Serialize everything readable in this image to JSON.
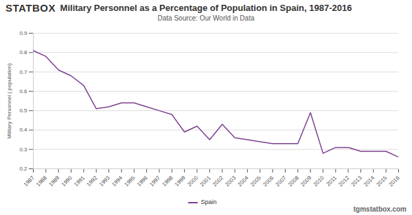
{
  "chart_data": {
    "type": "line",
    "logo": "STATBOX",
    "title": "Military Personnel as a Percentage of Population in Spain, 1987-2016",
    "subtitle": "Data Source: Our World in Data",
    "caption": "tgmstatbox.com",
    "y_label": "Military Personnel ( population)",
    "x": [
      1987,
      1988,
      1989,
      1990,
      1991,
      1992,
      1993,
      1994,
      1995,
      1996,
      1997,
      1998,
      1999,
      2000,
      2001,
      2002,
      2003,
      2004,
      2005,
      2006,
      2007,
      2008,
      2009,
      2010,
      2011,
      2012,
      2013,
      2014,
      2015,
      2016
    ],
    "series": [
      {
        "name": "Spain",
        "color": "#7b3f8f",
        "values": [
          0.81,
          0.78,
          0.71,
          0.68,
          0.63,
          0.51,
          0.52,
          0.54,
          0.54,
          0.52,
          0.5,
          0.48,
          0.39,
          0.42,
          0.35,
          0.43,
          0.36,
          0.35,
          0.34,
          0.33,
          0.33,
          0.33,
          0.49,
          0.28,
          0.31,
          0.31,
          0.29,
          0.29,
          0.29,
          0.26
        ]
      }
    ],
    "xlim": [
      1987,
      2016
    ],
    "xticks": [
      1987,
      1988,
      1989,
      1990,
      1991,
      1992,
      1993,
      1994,
      1995,
      1996,
      1997,
      1998,
      1999,
      2000,
      2001,
      2002,
      2003,
      2004,
      2005,
      2006,
      2007,
      2008,
      2009,
      2010,
      2011,
      2012,
      2013,
      2014,
      2015,
      2016
    ],
    "ylim": [
      0.2,
      0.9
    ],
    "yticks": [
      0.2,
      0.3,
      0.4,
      0.5,
      0.6,
      0.7,
      0.8,
      0.9
    ],
    "grid": true,
    "legend": "bottom"
  }
}
